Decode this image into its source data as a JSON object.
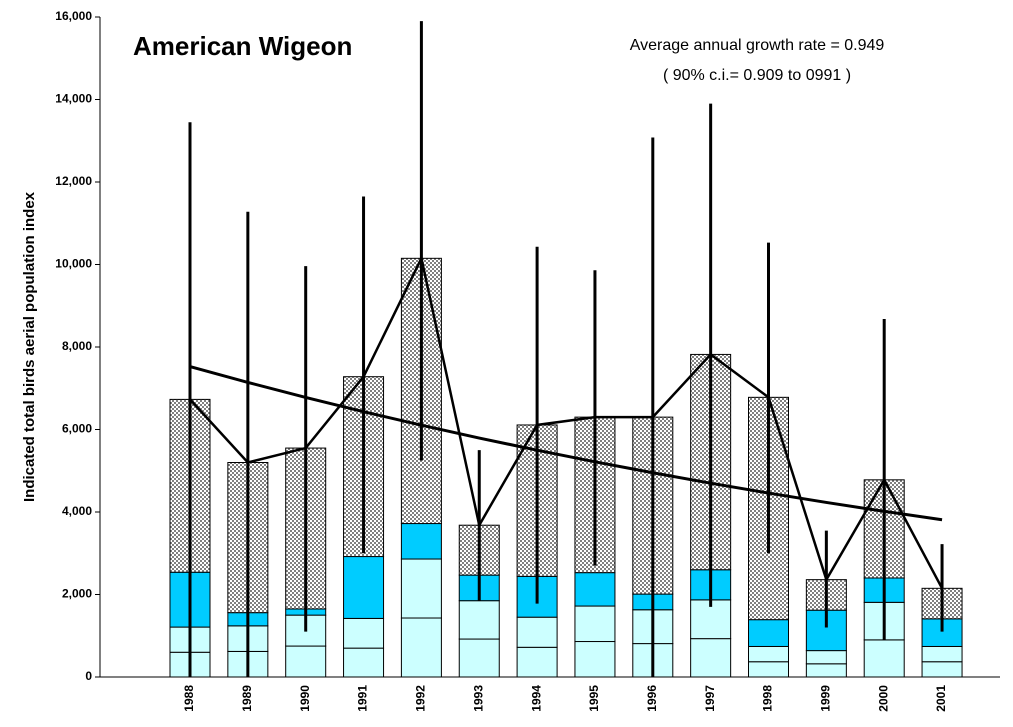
{
  "chart_data": {
    "type": "bar",
    "stacked": true,
    "title": "American Wigeon",
    "annotation": [
      "Average annual growth rate = 0.949",
      "( 90% c.i.= 0.909 to 0991 )"
    ],
    "y_label": "Indicated total birds aerial population index",
    "categories": [
      "1988",
      "1989",
      "1990",
      "1991",
      "1992",
      "1993",
      "1994",
      "1995",
      "1996",
      "1997",
      "1998",
      "1999",
      "2000",
      "2001"
    ],
    "series": [
      {
        "color": "#ccffff",
        "values": [
          600,
          620,
          750,
          700,
          1430,
          920,
          720,
          860,
          810,
          930,
          370,
          320,
          900,
          370
        ]
      },
      {
        "color": "#ccffff",
        "values": [
          610,
          620,
          750,
          720,
          1430,
          930,
          730,
          860,
          820,
          940,
          370,
          320,
          910,
          370
        ]
      },
      {
        "color": "#00ccff",
        "values": [
          1330,
          320,
          150,
          1500,
          860,
          620,
          990,
          810,
          380,
          730,
          650,
          980,
          590,
          670
        ]
      },
      {
        "color": "#808080",
        "pattern": "checker",
        "values": [
          4190,
          3640,
          3900,
          4360,
          6430,
          1210,
          3670,
          3770,
          4290,
          5220,
          5390,
          740,
          2380,
          740
        ]
      }
    ],
    "total_line": {
      "color": "#000000",
      "values": [
        6730,
        5200,
        5550,
        7280,
        10150,
        3680,
        6110,
        6300,
        6300,
        7820,
        6780,
        2360,
        4780,
        2150
      ]
    },
    "errors": {
      "color": "#000000",
      "low": [
        0,
        0,
        1100,
        3000,
        5250,
        1850,
        1780,
        2700,
        0,
        1700,
        3000,
        1200,
        900,
        1100
      ],
      "high": [
        13450,
        11280,
        9960,
        11650,
        15900,
        5500,
        10430,
        9860,
        13080,
        13900,
        10530,
        3550,
        8680,
        3220
      ]
    },
    "trend": {
      "color": "#000000",
      "values": [
        7526,
        7142,
        6778,
        6432,
        6104,
        5793,
        5498,
        5217,
        4951,
        4699,
        4459,
        4232,
        4016,
        3811
      ]
    },
    "ylim": [
      0,
      16000
    ],
    "yticks": [
      0,
      {
        "value": 2000,
        "label": "2,000"
      },
      {
        "value": 4000,
        "label": "4,000"
      },
      {
        "value": 6000,
        "label": "6,000"
      },
      {
        "value": 8000,
        "label": "8,000"
      },
      {
        "value": 10000,
        "label": "10,000"
      },
      {
        "value": 12000,
        "label": "12,000"
      },
      {
        "value": 14000,
        "label": "14,000"
      },
      {
        "value": 16000,
        "label": "16,000"
      }
    ]
  }
}
